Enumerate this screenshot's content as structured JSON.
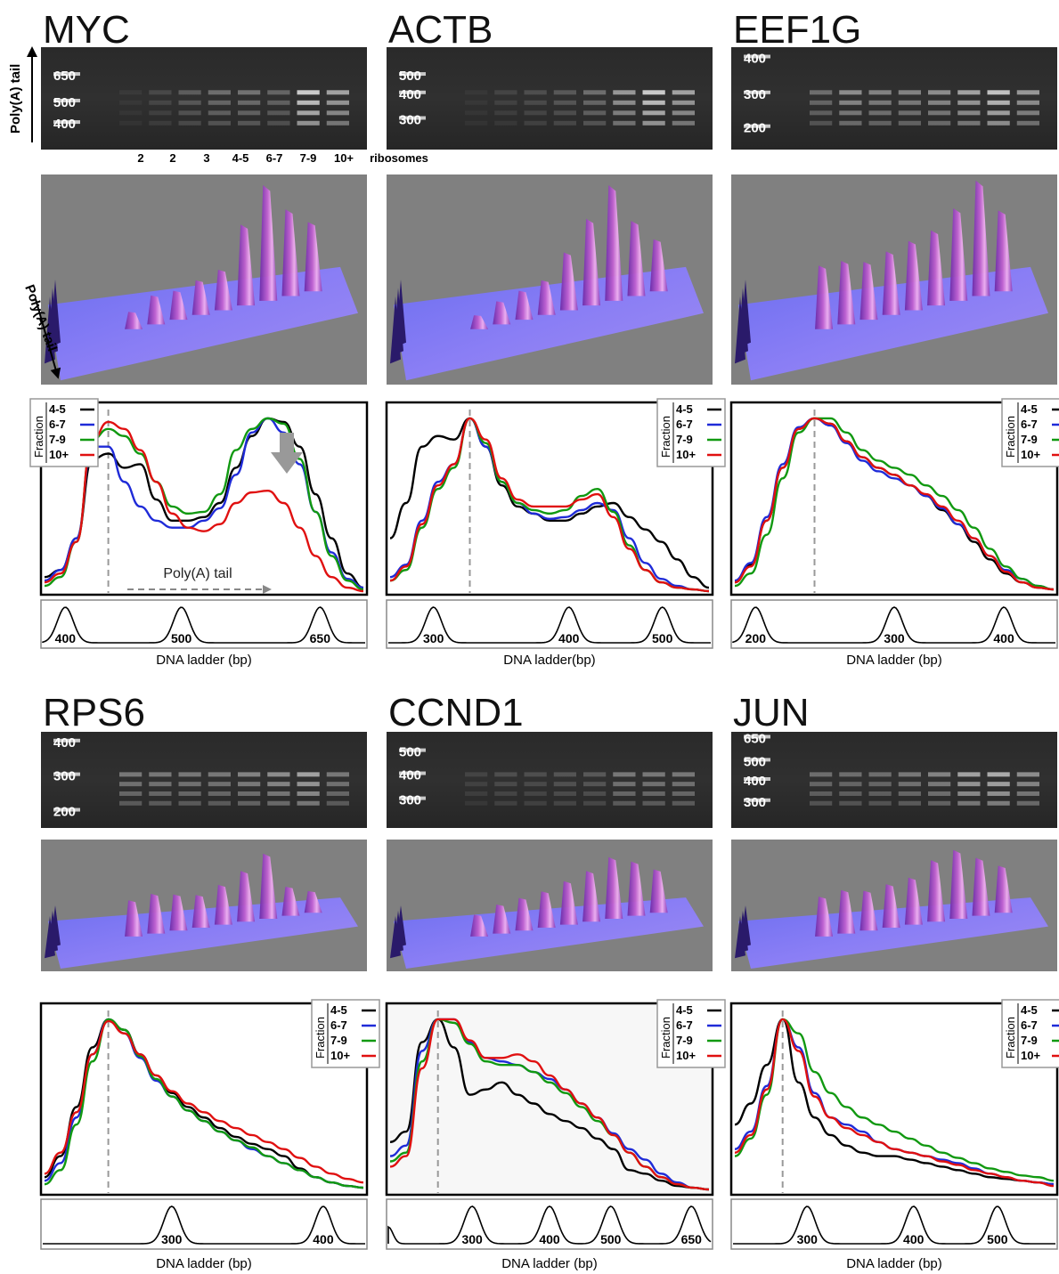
{
  "figure": {
    "side_label_gel": "Poly(A) tail",
    "side_label_3d": "Poly(A) tail",
    "lane_labels": [
      "2",
      "2",
      "3",
      "4-5",
      "6-7",
      "7-9",
      "10+",
      "ribosomes"
    ],
    "polya_arrow_label": "Poly(A) tail",
    "legend_title": "Fraction",
    "colors": {
      "4-5": "#000000",
      "6-7": "#1f2bd8",
      "7-9": "#119911",
      "10+": "#e01010"
    }
  },
  "chart_data": [
    {
      "type": "line",
      "gene": "MYC",
      "gel_ladder": [
        "650",
        "500",
        "400"
      ],
      "legend": [
        "4-5",
        "6-7",
        "7-9",
        "10+"
      ],
      "ladder_peaks": [
        "400",
        "500",
        "650"
      ],
      "ladder_xlabel": "DNA ladder (bp)",
      "x": [
        0,
        0.05,
        0.1,
        0.15,
        0.2,
        0.25,
        0.3,
        0.35,
        0.4,
        0.45,
        0.5,
        0.55,
        0.6,
        0.65,
        0.7,
        0.75,
        0.8,
        0.85,
        0.9,
        0.95,
        1.0
      ],
      "series": [
        {
          "name": "4-5",
          "values": [
            0.08,
            0.12,
            0.3,
            0.75,
            0.78,
            0.7,
            0.72,
            0.52,
            0.4,
            0.4,
            0.42,
            0.5,
            0.7,
            0.88,
            0.98,
            0.96,
            0.82,
            0.55,
            0.3,
            0.1,
            0.02
          ]
        },
        {
          "name": "6-7",
          "values": [
            0.06,
            0.12,
            0.3,
            0.82,
            0.82,
            0.62,
            0.48,
            0.4,
            0.36,
            0.36,
            0.4,
            0.47,
            0.66,
            0.9,
            0.98,
            0.9,
            0.72,
            0.45,
            0.22,
            0.07,
            0.02
          ]
        },
        {
          "name": "7-9",
          "values": [
            0.03,
            0.08,
            0.28,
            0.86,
            0.92,
            0.88,
            0.78,
            0.62,
            0.48,
            0.44,
            0.45,
            0.55,
            0.8,
            0.92,
            0.98,
            0.95,
            0.75,
            0.45,
            0.2,
            0.06,
            0.01
          ]
        },
        {
          "name": "10+",
          "values": [
            0.05,
            0.1,
            0.28,
            0.86,
            0.96,
            0.92,
            0.8,
            0.62,
            0.44,
            0.36,
            0.34,
            0.38,
            0.5,
            0.56,
            0.57,
            0.5,
            0.36,
            0.2,
            0.08,
            0.02,
            0.0
          ]
        }
      ]
    },
    {
      "type": "line",
      "gene": "ACTB",
      "gel_ladder": [
        "500",
        "400",
        "300"
      ],
      "legend": [
        "4-5",
        "6-7",
        "7-9",
        "10+"
      ],
      "ladder_peaks": [
        "300",
        "400",
        "500"
      ],
      "ladder_xlabel": "DNA ladder(bp)",
      "x": [
        0,
        0.05,
        0.1,
        0.15,
        0.2,
        0.25,
        0.3,
        0.35,
        0.4,
        0.45,
        0.5,
        0.55,
        0.6,
        0.65,
        0.7,
        0.75,
        0.8,
        0.85,
        0.9,
        0.95,
        1.0
      ],
      "series": [
        {
          "name": "4-5",
          "values": [
            0.3,
            0.5,
            0.82,
            0.88,
            0.86,
            0.98,
            0.82,
            0.6,
            0.48,
            0.44,
            0.4,
            0.4,
            0.44,
            0.48,
            0.5,
            0.42,
            0.35,
            0.28,
            0.18,
            0.08,
            0.02
          ]
        },
        {
          "name": "6-7",
          "values": [
            0.08,
            0.15,
            0.4,
            0.62,
            0.72,
            0.98,
            0.82,
            0.62,
            0.5,
            0.44,
            0.41,
            0.42,
            0.46,
            0.5,
            0.46,
            0.3,
            0.16,
            0.07,
            0.03,
            0.01,
            0.0
          ]
        },
        {
          "name": "7-9",
          "values": [
            0.06,
            0.12,
            0.36,
            0.58,
            0.7,
            0.98,
            0.84,
            0.62,
            0.5,
            0.46,
            0.44,
            0.46,
            0.54,
            0.58,
            0.45,
            0.26,
            0.12,
            0.05,
            0.02,
            0.01,
            0.0
          ]
        },
        {
          "name": "10+",
          "values": [
            0.06,
            0.14,
            0.38,
            0.6,
            0.72,
            0.98,
            0.86,
            0.64,
            0.52,
            0.48,
            0.48,
            0.48,
            0.52,
            0.55,
            0.42,
            0.24,
            0.12,
            0.05,
            0.02,
            0.01,
            0.0
          ]
        }
      ]
    },
    {
      "type": "line",
      "gene": "EEF1G",
      "gel_ladder": [
        "400",
        "300",
        "200"
      ],
      "legend": [
        "4-5",
        "6-7",
        "7-9",
        "10+"
      ],
      "ladder_peaks": [
        "200",
        "300",
        "400"
      ],
      "ladder_xlabel": "DNA ladder (bp)",
      "x": [
        0,
        0.05,
        0.1,
        0.15,
        0.2,
        0.25,
        0.3,
        0.35,
        0.4,
        0.45,
        0.5,
        0.55,
        0.6,
        0.65,
        0.7,
        0.75,
        0.8,
        0.85,
        0.9,
        0.95,
        1.0
      ],
      "series": [
        {
          "name": "4-5",
          "values": [
            0.05,
            0.15,
            0.4,
            0.7,
            0.92,
            0.98,
            0.95,
            0.85,
            0.76,
            0.7,
            0.66,
            0.6,
            0.54,
            0.46,
            0.38,
            0.28,
            0.18,
            0.1,
            0.05,
            0.02,
            0.01
          ]
        },
        {
          "name": "6-7",
          "values": [
            0.06,
            0.16,
            0.42,
            0.72,
            0.93,
            0.98,
            0.94,
            0.84,
            0.74,
            0.68,
            0.64,
            0.6,
            0.54,
            0.47,
            0.38,
            0.3,
            0.2,
            0.12,
            0.07,
            0.03,
            0.01
          ]
        },
        {
          "name": "7-9",
          "values": [
            0.03,
            0.1,
            0.32,
            0.64,
            0.9,
            0.98,
            0.98,
            0.9,
            0.8,
            0.74,
            0.7,
            0.66,
            0.6,
            0.54,
            0.46,
            0.36,
            0.24,
            0.14,
            0.07,
            0.03,
            0.01
          ]
        },
        {
          "name": "10+",
          "values": [
            0.05,
            0.14,
            0.4,
            0.7,
            0.92,
            0.98,
            0.95,
            0.85,
            0.76,
            0.7,
            0.66,
            0.6,
            0.55,
            0.48,
            0.4,
            0.3,
            0.2,
            0.11,
            0.05,
            0.02,
            0.01
          ]
        }
      ]
    },
    {
      "type": "line",
      "gene": "RPS6",
      "gel_ladder": [
        "400",
        "300",
        "200"
      ],
      "legend": [
        "4-5",
        "6-7",
        "7-9",
        "10+"
      ],
      "ladder_peaks": [
        "300",
        "400"
      ],
      "ladder_xlabel": "DNA ladder (bp)",
      "x": [
        0,
        0.05,
        0.1,
        0.15,
        0.2,
        0.25,
        0.3,
        0.35,
        0.4,
        0.45,
        0.5,
        0.55,
        0.6,
        0.65,
        0.7,
        0.75,
        0.8,
        0.85,
        0.9,
        0.95,
        1.0
      ],
      "series": [
        {
          "name": "4-5",
          "values": [
            0.08,
            0.2,
            0.48,
            0.82,
            0.98,
            0.92,
            0.78,
            0.66,
            0.56,
            0.48,
            0.42,
            0.36,
            0.31,
            0.27,
            0.24,
            0.2,
            0.13,
            0.08,
            0.05,
            0.03,
            0.02
          ]
        },
        {
          "name": "6-7",
          "values": [
            0.06,
            0.16,
            0.42,
            0.78,
            0.98,
            0.9,
            0.76,
            0.63,
            0.54,
            0.46,
            0.4,
            0.34,
            0.29,
            0.24,
            0.2,
            0.16,
            0.12,
            0.08,
            0.05,
            0.03,
            0.02
          ]
        },
        {
          "name": "7-9",
          "values": [
            0.04,
            0.12,
            0.38,
            0.74,
            0.98,
            0.92,
            0.77,
            0.64,
            0.54,
            0.46,
            0.4,
            0.34,
            0.29,
            0.25,
            0.2,
            0.16,
            0.12,
            0.08,
            0.05,
            0.03,
            0.02
          ]
        },
        {
          "name": "10+",
          "values": [
            0.1,
            0.22,
            0.45,
            0.78,
            0.97,
            0.9,
            0.78,
            0.66,
            0.57,
            0.5,
            0.45,
            0.4,
            0.36,
            0.32,
            0.28,
            0.24,
            0.19,
            0.14,
            0.1,
            0.07,
            0.05
          ]
        }
      ]
    },
    {
      "type": "line",
      "gene": "CCND1",
      "gel_ladder": [
        "500",
        "400",
        "300"
      ],
      "legend": [
        "4-5",
        "6-7",
        "7-9",
        "10+"
      ],
      "ladder_peaks": [
        "300",
        "400",
        "500",
        "650"
      ],
      "ladder_xlabel": "DNA ladder (bp)",
      "x": [
        0,
        0.05,
        0.1,
        0.15,
        0.2,
        0.25,
        0.3,
        0.35,
        0.4,
        0.45,
        0.5,
        0.55,
        0.6,
        0.65,
        0.7,
        0.75,
        0.8,
        0.85,
        0.9,
        0.95,
        1.0
      ],
      "series": [
        {
          "name": "4-5",
          "values": [
            0.28,
            0.34,
            0.85,
            0.98,
            0.82,
            0.55,
            0.58,
            0.62,
            0.55,
            0.5,
            0.44,
            0.4,
            0.36,
            0.3,
            0.24,
            0.12,
            0.1,
            0.06,
            0.03,
            0.02,
            0.01
          ]
        },
        {
          "name": "6-7",
          "values": [
            0.2,
            0.26,
            0.8,
            0.98,
            0.98,
            0.85,
            0.76,
            0.74,
            0.72,
            0.68,
            0.64,
            0.58,
            0.5,
            0.42,
            0.33,
            0.24,
            0.18,
            0.1,
            0.05,
            0.02,
            0.01
          ]
        },
        {
          "name": "7-9",
          "values": [
            0.17,
            0.22,
            0.74,
            0.98,
            0.96,
            0.84,
            0.74,
            0.72,
            0.72,
            0.68,
            0.62,
            0.56,
            0.48,
            0.4,
            0.32,
            0.22,
            0.14,
            0.08,
            0.04,
            0.02,
            0.01
          ]
        },
        {
          "name": "10+",
          "values": [
            0.14,
            0.2,
            0.7,
            0.98,
            0.98,
            0.86,
            0.76,
            0.76,
            0.78,
            0.74,
            0.66,
            0.58,
            0.5,
            0.42,
            0.32,
            0.22,
            0.14,
            0.08,
            0.04,
            0.02,
            0.01
          ]
        }
      ]
    },
    {
      "type": "line",
      "gene": "JUN",
      "gel_ladder": [
        "650",
        "500",
        "400",
        "300"
      ],
      "legend": [
        "4-5",
        "6-7",
        "7-9",
        "10+"
      ],
      "ladder_peaks": [
        "300",
        "400",
        "500"
      ],
      "ladder_xlabel": "DNA ladder (bp)",
      "x": [
        0,
        0.05,
        0.1,
        0.15,
        0.2,
        0.25,
        0.3,
        0.35,
        0.4,
        0.45,
        0.5,
        0.55,
        0.6,
        0.65,
        0.7,
        0.75,
        0.8,
        0.85,
        0.9,
        0.95,
        1.0
      ],
      "series": [
        {
          "name": "4-5",
          "values": [
            0.38,
            0.5,
            0.72,
            0.98,
            0.62,
            0.42,
            0.32,
            0.26,
            0.22,
            0.2,
            0.2,
            0.18,
            0.16,
            0.14,
            0.12,
            0.1,
            0.08,
            0.07,
            0.06,
            0.05,
            0.04
          ]
        },
        {
          "name": "6-7",
          "values": [
            0.24,
            0.34,
            0.6,
            0.98,
            0.82,
            0.56,
            0.42,
            0.38,
            0.34,
            0.28,
            0.24,
            0.22,
            0.2,
            0.18,
            0.16,
            0.13,
            0.1,
            0.08,
            0.06,
            0.05,
            0.04
          ]
        },
        {
          "name": "7-9",
          "values": [
            0.2,
            0.3,
            0.55,
            0.98,
            0.9,
            0.68,
            0.56,
            0.48,
            0.42,
            0.38,
            0.34,
            0.3,
            0.26,
            0.22,
            0.19,
            0.16,
            0.13,
            0.11,
            0.09,
            0.08,
            0.06
          ]
        },
        {
          "name": "10+",
          "values": [
            0.22,
            0.32,
            0.58,
            0.98,
            0.8,
            0.54,
            0.42,
            0.36,
            0.32,
            0.28,
            0.24,
            0.22,
            0.2,
            0.17,
            0.15,
            0.12,
            0.1,
            0.08,
            0.06,
            0.05,
            0.03
          ]
        }
      ]
    }
  ]
}
